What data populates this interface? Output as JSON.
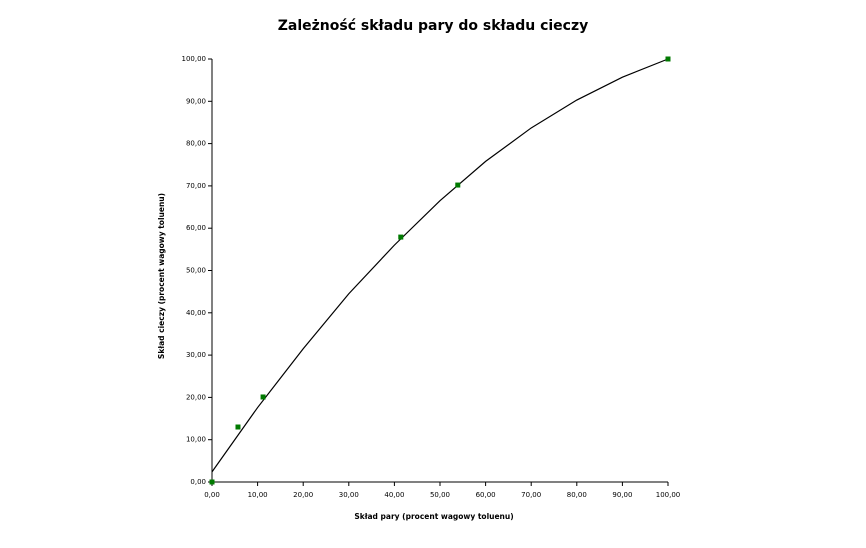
{
  "chart_data": {
    "type": "scatter",
    "title": "Zależność składu pary do składu cieczy",
    "xlabel": "Skład pary (procent wagowy toluenu)",
    "ylabel": "Skład cieczy (procent wagowy toluenu)",
    "xlim": [
      0,
      100
    ],
    "ylim": [
      0,
      100
    ],
    "xticks": [
      {
        "value": 0,
        "label": "0,00"
      },
      {
        "value": 10,
        "label": "10,00"
      },
      {
        "value": 20,
        "label": "20,00"
      },
      {
        "value": 30,
        "label": "30,00"
      },
      {
        "value": 40,
        "label": "40,00"
      },
      {
        "value": 50,
        "label": "50,00"
      },
      {
        "value": 60,
        "label": "60,00"
      },
      {
        "value": 70,
        "label": "70,00"
      },
      {
        "value": 80,
        "label": "80,00"
      },
      {
        "value": 90,
        "label": "90,00"
      },
      {
        "value": 100,
        "label": "100,00"
      }
    ],
    "yticks": [
      {
        "value": 0,
        "label": "0,00"
      },
      {
        "value": 10,
        "label": "10,00"
      },
      {
        "value": 20,
        "label": "20,00"
      },
      {
        "value": 30,
        "label": "30,00"
      },
      {
        "value": 40,
        "label": "40,00"
      },
      {
        "value": 50,
        "label": "50,00"
      },
      {
        "value": 60,
        "label": "60,00"
      },
      {
        "value": 70,
        "label": "70,00"
      },
      {
        "value": 80,
        "label": "80,00"
      },
      {
        "value": 90,
        "label": "90,00"
      },
      {
        "value": 100,
        "label": "100,00"
      }
    ],
    "grid": false,
    "series": [
      {
        "style": "line",
        "color": "#000000",
        "x": [
          0,
          10,
          20,
          30,
          40,
          50,
          60,
          70,
          80,
          90,
          100
        ],
        "values": [
          2.4,
          17.6,
          31.5,
          44.5,
          56,
          66.5,
          75.8,
          83.7,
          90.3,
          95.7,
          100
        ]
      },
      {
        "style": "markers",
        "color": "#007a00",
        "x": [
          0,
          5.7,
          11.2,
          41.4,
          53.9,
          100
        ],
        "values": [
          0,
          13,
          20.1,
          57.9,
          70.2,
          100
        ]
      }
    ]
  }
}
